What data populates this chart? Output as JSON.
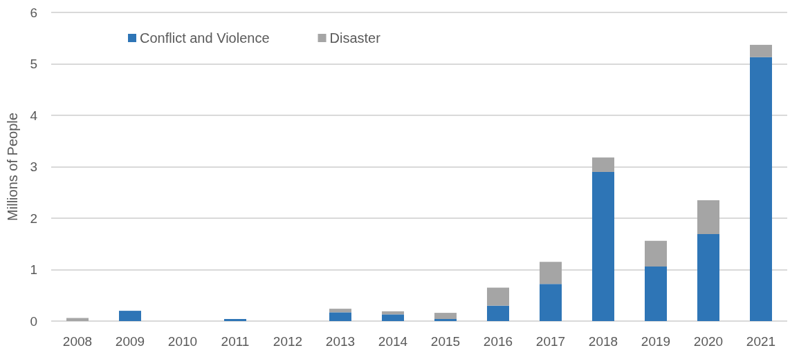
{
  "chart_data": {
    "type": "bar",
    "stacked": true,
    "ylabel": "Millions of People",
    "categories": [
      "2008",
      "2009",
      "2010",
      "2011",
      "2012",
      "2013",
      "2014",
      "2015",
      "2016",
      "2017",
      "2018",
      "2019",
      "2020",
      "2021"
    ],
    "series": [
      {
        "name": "Conflict and Violence",
        "color": "#2e75b6",
        "values": [
          0,
          0.2,
          0,
          0.04,
          0,
          0.17,
          0.13,
          0.04,
          0.3,
          0.72,
          2.9,
          1.06,
          1.69,
          5.13
        ]
      },
      {
        "name": "Disaster",
        "color": "#a5a5a5",
        "values": [
          0.06,
          0,
          0,
          0,
          0,
          0.07,
          0.06,
          0.12,
          0.35,
          0.43,
          0.28,
          0.5,
          0.66,
          0.24
        ]
      }
    ],
    "ylim": [
      0,
      6
    ],
    "yticks": [
      0,
      1,
      2,
      3,
      4,
      5,
      6
    ],
    "grid": "y",
    "legend": "top left"
  }
}
